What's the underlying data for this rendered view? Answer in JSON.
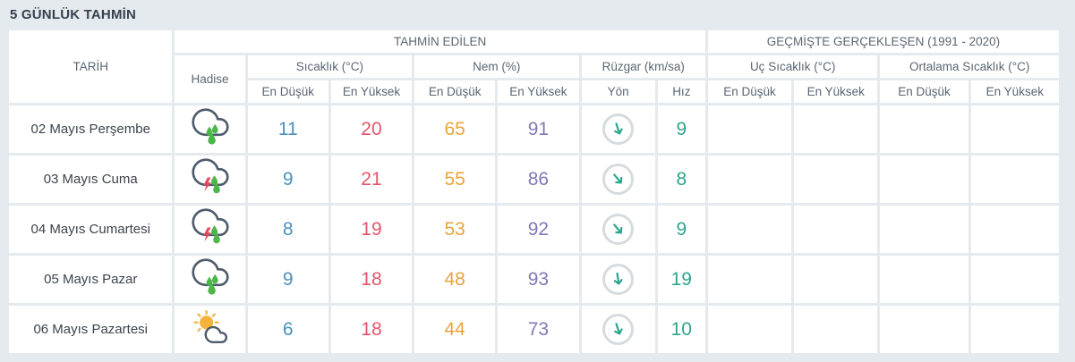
{
  "page": {
    "title": "5 GÜNLÜK TAHMİN"
  },
  "table": {
    "headers": {
      "date": "TARİH",
      "forecast_group": "TAHMİN EDİLEN",
      "past_group": "GEÇMİŞTE GERÇEKLEŞEN (1991 - 2020)",
      "event": "Hadise",
      "temperature": "Sıcaklık (°C)",
      "humidity": "Nem (%)",
      "wind": "Rüzgar (km/sa)",
      "extreme_temperature": "Uç Sıcaklık (°C)",
      "average_temperature": "Ortalama Sıcaklık (°C)",
      "min_label": "En Düşük",
      "max_label": "En Yüksek",
      "direction_label": "Yön",
      "speed_label": "Hız"
    },
    "colors": {
      "temp_min": "#4a90bf",
      "temp_max": "#e4556a",
      "humidity_min": "#e9a43b",
      "humidity_max": "#8278b8",
      "wind_speed": "#2ba58e"
    },
    "rows": [
      {
        "date": "02 Mayıs Perşembe",
        "icon": "rainy-icon",
        "temp_min": "11",
        "temp_max": "20",
        "humidity_min": "65",
        "humidity_max": "91",
        "wind_direction_deg": -18,
        "wind_speed": "9"
      },
      {
        "date": "03 Mayıs Cuma",
        "icon": "thunderstorm-icon",
        "temp_min": "9",
        "temp_max": "21",
        "humidity_min": "55",
        "humidity_max": "86",
        "wind_direction_deg": -40,
        "wind_speed": "8"
      },
      {
        "date": "04 Mayıs Cumartesi",
        "icon": "thunderstorm-icon",
        "temp_min": "8",
        "temp_max": "19",
        "humidity_min": "53",
        "humidity_max": "92",
        "wind_direction_deg": -40,
        "wind_speed": "9"
      },
      {
        "date": "05 Mayıs Pazar",
        "icon": "rainy-icon",
        "temp_min": "9",
        "temp_max": "18",
        "humidity_min": "48",
        "humidity_max": "93",
        "wind_direction_deg": -8,
        "wind_speed": "19"
      },
      {
        "date": "06 Mayıs Pazartesi",
        "icon": "partly-cloudy-icon",
        "temp_min": "6",
        "temp_max": "18",
        "humidity_min": "44",
        "humidity_max": "73",
        "wind_direction_deg": -18,
        "wind_speed": "10"
      }
    ]
  }
}
